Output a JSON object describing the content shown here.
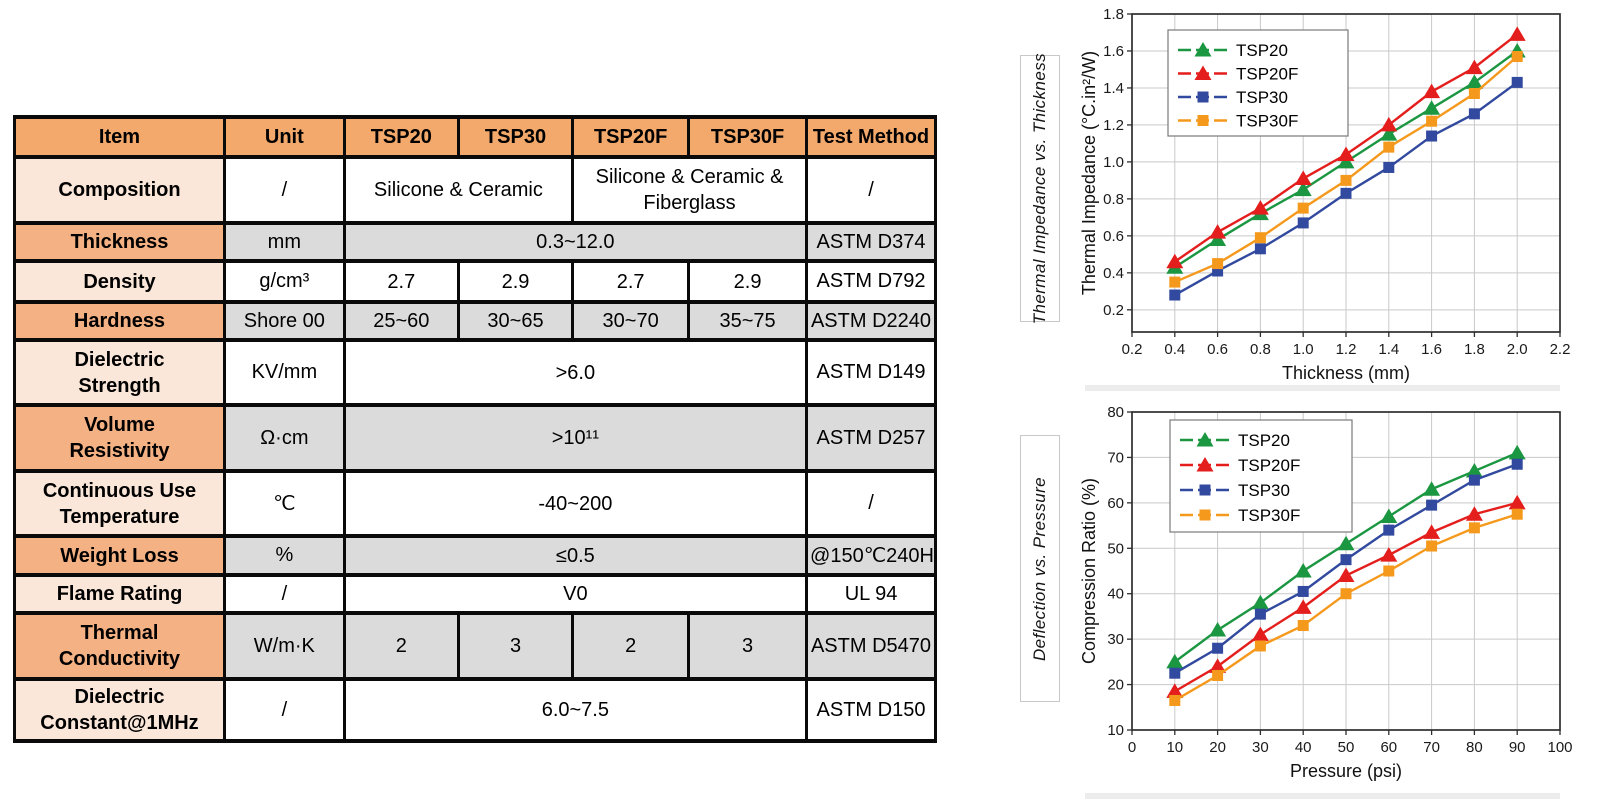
{
  "table": {
    "headers": [
      "Item",
      "Unit",
      "TSP20",
      "TSP30",
      "TSP20F",
      "TSP30F",
      "Test Method"
    ],
    "rows": [
      {
        "item_lines": [
          "Composition"
        ],
        "unit": "/",
        "shade": "white",
        "cells": [
          {
            "text": "Silicone & Ceramic",
            "span": 2
          },
          {
            "text": "Silicone & Ceramic & Fiberglass",
            "span": 2
          }
        ],
        "test": "/"
      },
      {
        "item_lines": [
          "Thickness"
        ],
        "unit": "mm",
        "shade": "gray",
        "cells": [
          {
            "text": "0.3~12.0",
            "span": 4
          }
        ],
        "test": "ASTM D374"
      },
      {
        "item_lines": [
          "Density"
        ],
        "unit": "g/cm³",
        "shade": "white",
        "cells": [
          {
            "text": "2.7",
            "span": 1
          },
          {
            "text": "2.9",
            "span": 1
          },
          {
            "text": "2.7",
            "span": 1
          },
          {
            "text": "2.9",
            "span": 1
          }
        ],
        "test": "ASTM D792"
      },
      {
        "item_lines": [
          "Hardness"
        ],
        "unit": "Shore 00",
        "shade": "gray",
        "cells": [
          {
            "text": "25~60",
            "span": 1
          },
          {
            "text": "30~65",
            "span": 1
          },
          {
            "text": "30~70",
            "span": 1
          },
          {
            "text": "35~75",
            "span": 1
          }
        ],
        "test": "ASTM D2240"
      },
      {
        "item_lines": [
          "Dielectric",
          "Strength"
        ],
        "unit": "KV/mm",
        "shade": "white",
        "cells": [
          {
            "text": ">6.0",
            "span": 4
          }
        ],
        "test": "ASTM D149"
      },
      {
        "item_lines": [
          "Volume",
          "Resistivity"
        ],
        "unit": "Ω·cm",
        "shade": "gray",
        "cells": [
          {
            "text": ">10¹¹",
            "span": 4
          }
        ],
        "test": "ASTM D257"
      },
      {
        "item_lines": [
          "Continuous Use",
          "Temperature"
        ],
        "unit": "℃",
        "shade": "white",
        "cells": [
          {
            "text": "-40~200",
            "span": 4
          }
        ],
        "test": "/"
      },
      {
        "item_lines": [
          "Weight Loss"
        ],
        "unit": "%",
        "shade": "gray",
        "cells": [
          {
            "text": "≤0.5",
            "span": 4
          }
        ],
        "test": "@150℃240H"
      },
      {
        "item_lines": [
          "Flame Rating"
        ],
        "unit": "/",
        "shade": "white",
        "cells": [
          {
            "text": "V0",
            "span": 4
          }
        ],
        "test": "UL 94"
      },
      {
        "item_lines": [
          "Thermal",
          "Conductivity"
        ],
        "unit": "W/m·K",
        "shade": "gray",
        "cells": [
          {
            "text": "2",
            "span": 1
          },
          {
            "text": "3",
            "span": 1
          },
          {
            "text": "2",
            "span": 1
          },
          {
            "text": "3",
            "span": 1
          }
        ],
        "test": "ASTM D5470"
      },
      {
        "item_lines": [
          "Dielectric",
          "Constant@1MHz"
        ],
        "unit": "/",
        "shade": "white",
        "cells": [
          {
            "text": "6.0~7.5",
            "span": 4
          }
        ],
        "test": "ASTM D150"
      }
    ]
  },
  "colors": {
    "header_bg": "#F3A96B",
    "item_light_bg": "#FBE7D9",
    "item_dark_bg": "#F4B183",
    "cell_gray_bg": "#DBDBDB",
    "table_border": "#0A0A0A",
    "grid": "#C9C9C9",
    "axis": "#2E2E2E"
  },
  "chart_data": [
    {
      "type": "line",
      "panel_label": "Thermal Impedance vs. Thickness",
      "xlabel": "Thickness (mm)",
      "ylabel": "Thermal Impedance (°C.in²/W)",
      "xlim": [
        0.2,
        2.2
      ],
      "ylim": [
        0.08,
        1.8
      ],
      "xticks": [
        0.2,
        0.4,
        0.6,
        0.8,
        1.0,
        1.2,
        1.4,
        1.6,
        1.8,
        2.0,
        2.2
      ],
      "xtick_labels": [
        "0.2",
        "0.4",
        "0.6",
        "0.8",
        "1.0",
        "1.2",
        "1.4",
        "1.6",
        "1.8",
        "2.0",
        "2.2"
      ],
      "yticks": [
        0.2,
        0.4,
        0.6,
        0.8,
        1.0,
        1.2,
        1.4,
        1.6,
        1.8
      ],
      "ytick_labels": [
        "0.2",
        "0.4",
        "0.6",
        "0.8",
        "1.0",
        "1.2",
        "1.4",
        "1.6",
        "1.8"
      ],
      "x": [
        0.4,
        0.6,
        0.8,
        1.0,
        1.2,
        1.4,
        1.6,
        1.8,
        2.0
      ],
      "grid": true,
      "legend_position": "top-left",
      "series": [
        {
          "name": "TSP20",
          "color": "#1B9641",
          "marker": "triangle",
          "values": [
            0.43,
            0.58,
            0.72,
            0.85,
            1.0,
            1.15,
            1.29,
            1.43,
            1.6
          ]
        },
        {
          "name": "TSP20F",
          "color": "#E31E1C",
          "marker": "triangle",
          "values": [
            0.46,
            0.62,
            0.75,
            0.91,
            1.04,
            1.2,
            1.38,
            1.51,
            1.69
          ]
        },
        {
          "name": "TSP30",
          "color": "#31499E",
          "marker": "square",
          "values": [
            0.28,
            0.41,
            0.53,
            0.67,
            0.83,
            0.97,
            1.14,
            1.26,
            1.43
          ]
        },
        {
          "name": "TSP30F",
          "color": "#F5991C",
          "marker": "square",
          "values": [
            0.35,
            0.45,
            0.59,
            0.75,
            0.9,
            1.08,
            1.22,
            1.37,
            1.57
          ]
        }
      ]
    },
    {
      "type": "line",
      "panel_label": "Deflection vs. Pressure",
      "xlabel": "Pressure (psi)",
      "ylabel": "Compression Ratio (%)",
      "xlim": [
        0,
        100
      ],
      "ylim": [
        10,
        80
      ],
      "xticks": [
        0,
        10,
        20,
        30,
        40,
        50,
        60,
        70,
        80,
        90,
        100
      ],
      "xtick_labels": [
        "0",
        "10",
        "20",
        "30",
        "40",
        "50",
        "60",
        "70",
        "80",
        "90",
        "100"
      ],
      "yticks": [
        10,
        20,
        30,
        40,
        50,
        60,
        70,
        80
      ],
      "ytick_labels": [
        "10",
        "20",
        "30",
        "40",
        "50",
        "60",
        "70",
        "80"
      ],
      "x": [
        10,
        20,
        30,
        40,
        50,
        60,
        70,
        80,
        90
      ],
      "grid": true,
      "legend_position": "top-left",
      "series": [
        {
          "name": "TSP20",
          "color": "#1B9641",
          "marker": "triangle",
          "values": [
            25,
            32,
            38,
            45,
            51,
            57,
            63,
            67,
            71
          ]
        },
        {
          "name": "TSP20F",
          "color": "#E31E1C",
          "marker": "triangle",
          "values": [
            18.5,
            24,
            31,
            37,
            44,
            48.5,
            53.5,
            57.5,
            60
          ]
        },
        {
          "name": "TSP30",
          "color": "#31499E",
          "marker": "square",
          "values": [
            22.5,
            28,
            35.5,
            40.5,
            47.5,
            54,
            59.5,
            65,
            68.5
          ]
        },
        {
          "name": "TSP30F",
          "color": "#F5991C",
          "marker": "square",
          "values": [
            16.5,
            22,
            28.5,
            33,
            40,
            45,
            50.5,
            54.5,
            57.5
          ]
        }
      ]
    }
  ]
}
